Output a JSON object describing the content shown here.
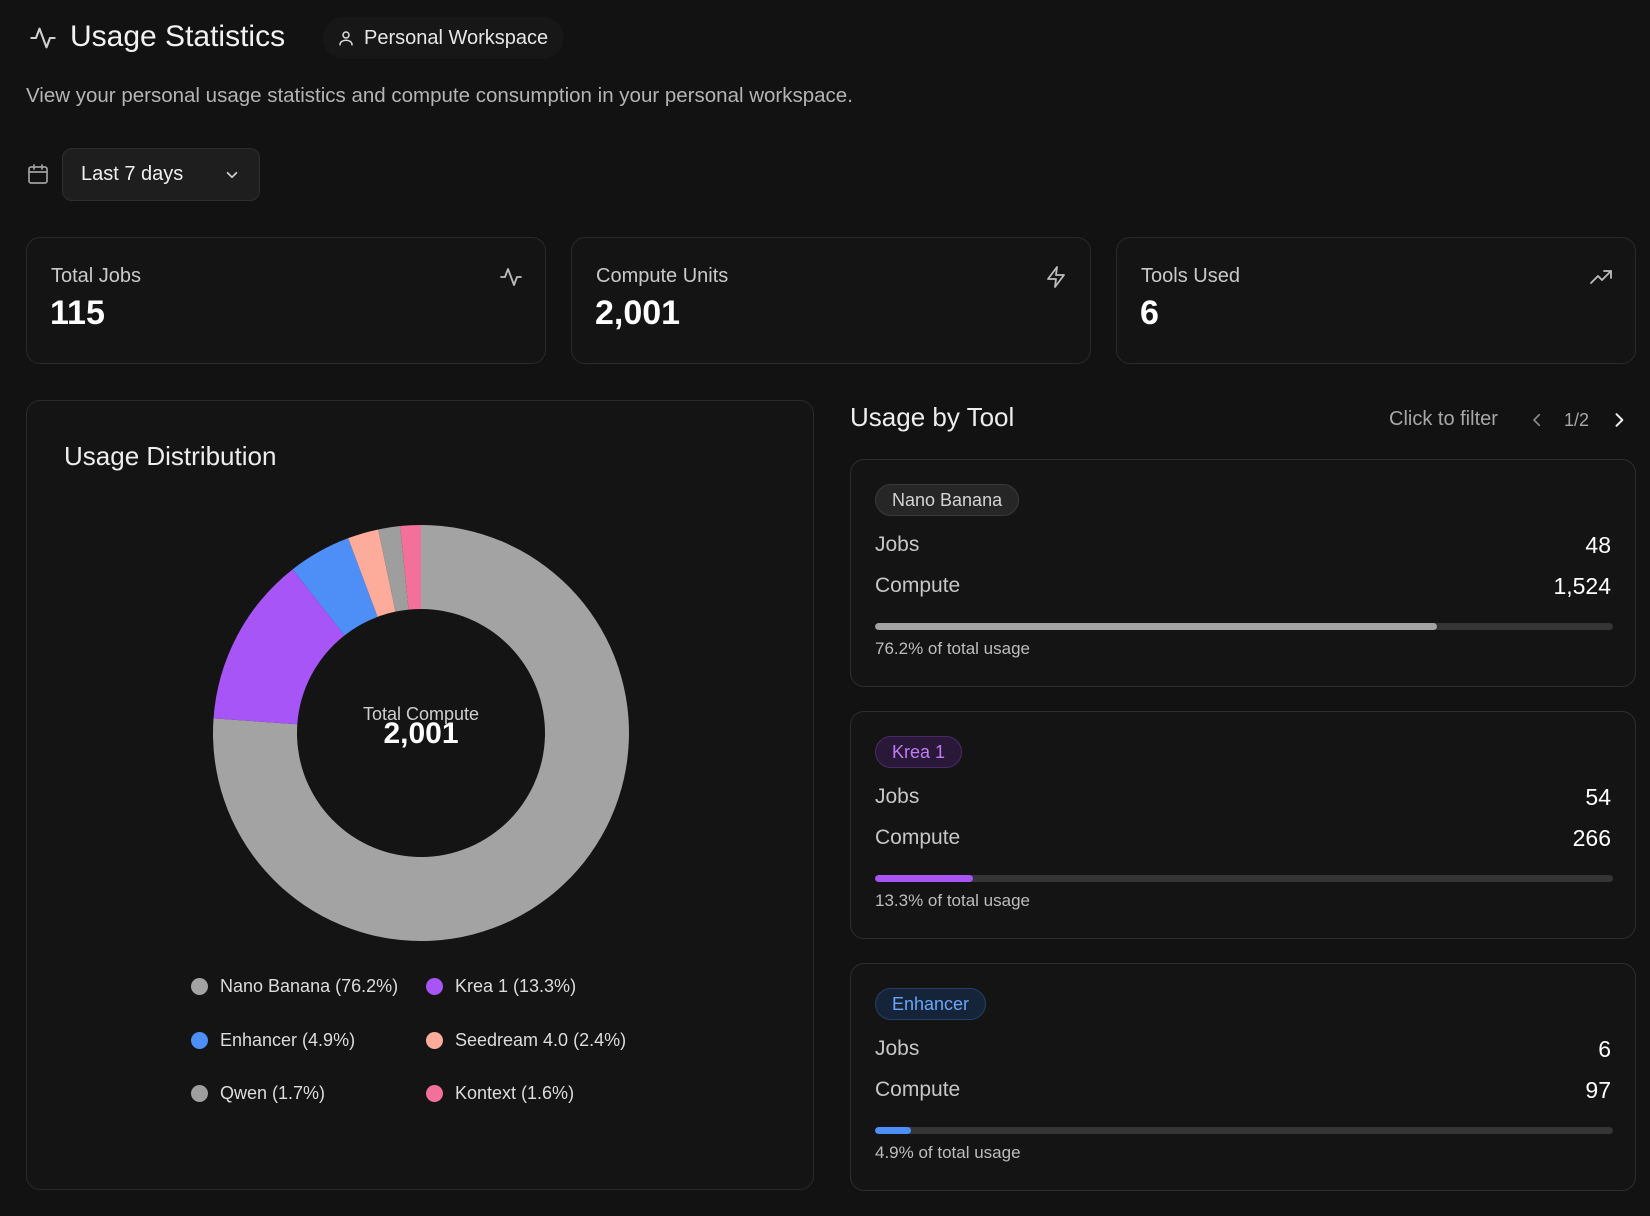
{
  "header": {
    "title": "Usage Statistics",
    "workspace_label": "Personal Workspace",
    "subtitle": "View your personal usage statistics and compute consumption in your personal workspace."
  },
  "filters": {
    "date_range": "Last 7 days"
  },
  "stats": [
    {
      "label": "Total Jobs",
      "value": "115",
      "icon": "activity-icon"
    },
    {
      "label": "Compute Units",
      "value": "2,001",
      "icon": "lightning-icon"
    },
    {
      "label": "Tools Used",
      "value": "6",
      "icon": "trending-up-icon"
    }
  ],
  "distribution": {
    "title": "Usage Distribution",
    "center_label": "Total Compute",
    "center_value": "2,001"
  },
  "chart_data": {
    "type": "pie",
    "donut": true,
    "categories": [
      "Nano Banana",
      "Krea 1",
      "Enhancer",
      "Seedream 4.0",
      "Qwen",
      "Kontext"
    ],
    "values": [
      76.2,
      13.3,
      4.9,
      2.4,
      1.7,
      1.6
    ],
    "colors": [
      "#a3a3a3",
      "#a855f7",
      "#4d8ef7",
      "#fdab9b",
      "#9e9e9e",
      "#f3709a"
    ],
    "legend": [
      "Nano Banana (76.2%)",
      "Krea 1 (13.3%)",
      "Enhancer (4.9%)",
      "Seedream 4.0 (2.4%)",
      "Qwen (1.7%)",
      "Kontext (1.6%)"
    ],
    "legend_placement": "bottom"
  },
  "usage_by_tool": {
    "title": "Usage by Tool",
    "filter_hint": "Click to filter",
    "page": "1/2",
    "jobs_label": "Jobs",
    "compute_label": "Compute",
    "tools": [
      {
        "name": "Nano Banana",
        "jobs": "48",
        "compute": "1,524",
        "share": 0.762,
        "caption": "76.2% of total usage",
        "color": "#a3a3a3",
        "tag_bg": "#262626",
        "tag_border": "#3a3a3a",
        "tag_text": "#d4d4d4"
      },
      {
        "name": "Krea 1",
        "jobs": "54",
        "compute": "266",
        "share": 0.133,
        "caption": "13.3% of total usage",
        "color": "#a855f7",
        "tag_bg": "#2a1838",
        "tag_border": "#4a2a66",
        "tag_text": "#c07cf7"
      },
      {
        "name": "Enhancer",
        "jobs": "6",
        "compute": "97",
        "share": 0.049,
        "caption": "4.9% of total usage",
        "color": "#4d8ef7",
        "tag_bg": "#16243a",
        "tag_border": "#24406a",
        "tag_text": "#6aa5f7"
      }
    ]
  }
}
